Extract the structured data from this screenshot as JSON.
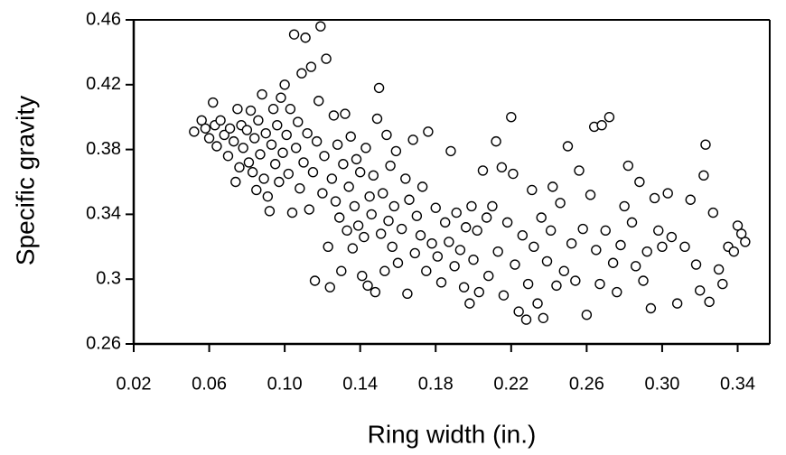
{
  "chart_data": {
    "type": "scatter",
    "x_label": "Ring width (in.)",
    "y_label": "Specific gravity",
    "xlim": [
      0.02,
      0.357
    ],
    "ylim": [
      0.26,
      0.46
    ],
    "xticks": [
      0.02,
      0.06,
      {
        "value": 0.1,
        "label": "0.10"
      },
      0.14,
      0.18,
      0.22,
      0.26,
      {
        "value": 0.3,
        "label": "0.30"
      },
      0.34
    ],
    "yticks": [
      0.26,
      0.3,
      0.34,
      0.38,
      0.42,
      0.46
    ],
    "marker_color": "#000000",
    "x": [
      0.052,
      0.056,
      0.058,
      0.06,
      0.062,
      0.063,
      0.064,
      0.066,
      0.068,
      0.07,
      0.071,
      0.073,
      0.074,
      0.075,
      0.076,
      0.077,
      0.078,
      0.08,
      0.081,
      0.082,
      0.083,
      0.084,
      0.085,
      0.086,
      0.087,
      0.088,
      0.089,
      0.09,
      0.091,
      0.092,
      0.093,
      0.094,
      0.095,
      0.096,
      0.097,
      0.098,
      0.099,
      0.1,
      0.101,
      0.102,
      0.103,
      0.104,
      0.105,
      0.106,
      0.107,
      0.108,
      0.109,
      0.11,
      0.111,
      0.112,
      0.113,
      0.114,
      0.115,
      0.116,
      0.117,
      0.118,
      0.119,
      0.12,
      0.121,
      0.122,
      0.123,
      0.124,
      0.125,
      0.126,
      0.127,
      0.128,
      0.129,
      0.13,
      0.131,
      0.132,
      0.133,
      0.134,
      0.135,
      0.136,
      0.137,
      0.138,
      0.139,
      0.14,
      0.141,
      0.142,
      0.143,
      0.144,
      0.145,
      0.146,
      0.147,
      0.148,
      0.149,
      0.15,
      0.151,
      0.152,
      0.153,
      0.154,
      0.155,
      0.156,
      0.157,
      0.158,
      0.159,
      0.16,
      0.162,
      0.164,
      0.165,
      0.166,
      0.168,
      0.169,
      0.17,
      0.172,
      0.173,
      0.175,
      0.176,
      0.178,
      0.18,
      0.181,
      0.183,
      0.185,
      0.187,
      0.188,
      0.19,
      0.191,
      0.193,
      0.195,
      0.196,
      0.198,
      0.199,
      0.2,
      0.202,
      0.203,
      0.205,
      0.207,
      0.208,
      0.21,
      0.212,
      0.213,
      0.215,
      0.216,
      0.218,
      0.22,
      0.221,
      0.222,
      0.224,
      0.226,
      0.228,
      0.229,
      0.231,
      0.232,
      0.234,
      0.236,
      0.237,
      0.239,
      0.241,
      0.242,
      0.244,
      0.246,
      0.248,
      0.25,
      0.252,
      0.254,
      0.256,
      0.258,
      0.26,
      0.262,
      0.264,
      0.265,
      0.267,
      0.268,
      0.27,
      0.272,
      0.274,
      0.276,
      0.278,
      0.28,
      0.282,
      0.284,
      0.286,
      0.288,
      0.29,
      0.292,
      0.294,
      0.296,
      0.298,
      0.3,
      0.303,
      0.305,
      0.308,
      0.312,
      0.315,
      0.318,
      0.32,
      0.322,
      0.323,
      0.325,
      0.327,
      0.33,
      0.332,
      0.335,
      0.338,
      0.34,
      0.342,
      0.344
    ],
    "y": [
      0.391,
      0.398,
      0.393,
      0.387,
      0.409,
      0.395,
      0.382,
      0.398,
      0.389,
      0.376,
      0.393,
      0.385,
      0.36,
      0.405,
      0.369,
      0.395,
      0.381,
      0.392,
      0.372,
      0.404,
      0.366,
      0.387,
      0.355,
      0.398,
      0.377,
      0.414,
      0.362,
      0.39,
      0.351,
      0.342,
      0.383,
      0.405,
      0.371,
      0.395,
      0.36,
      0.412,
      0.378,
      0.42,
      0.389,
      0.365,
      0.405,
      0.341,
      0.451,
      0.381,
      0.397,
      0.356,
      0.427,
      0.372,
      0.449,
      0.39,
      0.343,
      0.431,
      0.366,
      0.299,
      0.385,
      0.41,
      0.456,
      0.353,
      0.376,
      0.436,
      0.32,
      0.295,
      0.362,
      0.401,
      0.348,
      0.383,
      0.338,
      0.305,
      0.371,
      0.402,
      0.33,
      0.357,
      0.388,
      0.319,
      0.345,
      0.374,
      0.333,
      0.366,
      0.302,
      0.326,
      0.381,
      0.296,
      0.351,
      0.34,
      0.364,
      0.292,
      0.399,
      0.418,
      0.328,
      0.353,
      0.305,
      0.389,
      0.336,
      0.37,
      0.32,
      0.345,
      0.379,
      0.31,
      0.331,
      0.362,
      0.291,
      0.349,
      0.386,
      0.316,
      0.339,
      0.327,
      0.357,
      0.305,
      0.391,
      0.322,
      0.344,
      0.314,
      0.298,
      0.335,
      0.323,
      0.379,
      0.308,
      0.341,
      0.318,
      0.295,
      0.332,
      0.285,
      0.345,
      0.312,
      0.33,
      0.292,
      0.367,
      0.338,
      0.302,
      0.345,
      0.385,
      0.317,
      0.369,
      0.29,
      0.335,
      0.4,
      0.365,
      0.309,
      0.28,
      0.327,
      0.275,
      0.297,
      0.355,
      0.32,
      0.285,
      0.338,
      0.276,
      0.311,
      0.33,
      0.357,
      0.296,
      0.347,
      0.305,
      0.382,
      0.322,
      0.299,
      0.367,
      0.331,
      0.278,
      0.352,
      0.394,
      0.318,
      0.297,
      0.395,
      0.33,
      0.4,
      0.31,
      0.292,
      0.321,
      0.345,
      0.37,
      0.335,
      0.308,
      0.36,
      0.299,
      0.317,
      0.282,
      0.35,
      0.33,
      0.32,
      0.353,
      0.326,
      0.285,
      0.32,
      0.349,
      0.309,
      0.293,
      0.364,
      0.383,
      0.286,
      0.341,
      0.306,
      0.297,
      0.32,
      0.317,
      0.333,
      0.328,
      0.323
    ]
  }
}
